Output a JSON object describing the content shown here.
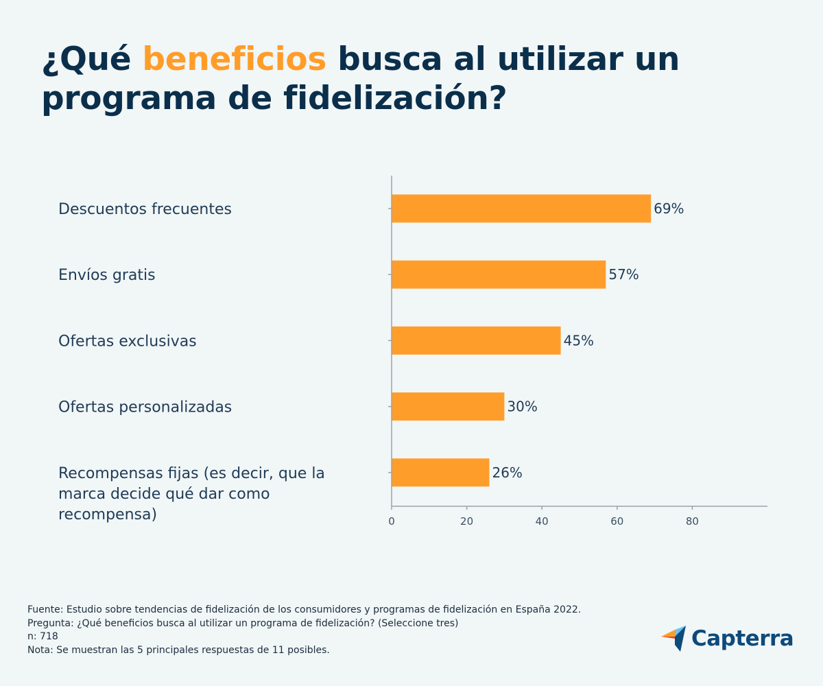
{
  "title": {
    "prefix": "¿Qué ",
    "highlight": "beneficios",
    "suffix": " busca al utilizar un programa de fidelización?"
  },
  "colors": {
    "bar": "#ff9d2b",
    "title": "#0b2f4b",
    "accent": "#ff9d28",
    "background": "#f1f6f7"
  },
  "chart_data": {
    "type": "bar",
    "orientation": "horizontal",
    "categories": [
      [
        "Descuentos frecuentes"
      ],
      [
        "Envíos gratis"
      ],
      [
        "Ofertas exclusivas"
      ],
      [
        "Ofertas personalizadas"
      ],
      [
        "Recompensas fijas (es decir, que la",
        "marca decide qué dar como",
        "recompensa)"
      ]
    ],
    "values": [
      69,
      57,
      45,
      30,
      26
    ],
    "value_labels": [
      "69%",
      "57%",
      "45%",
      "30%",
      "26%"
    ],
    "xticks": [
      0,
      20,
      40,
      60,
      80
    ],
    "xlim": [
      0,
      100
    ],
    "title": "¿Qué beneficios busca al utilizar un programa de fidelización?",
    "xlabel": "",
    "ylabel": ""
  },
  "footer": {
    "source": "Fuente: Estudio sobre tendencias de fidelización de los consumidores y programas de fidelización en España 2022.",
    "question": "Pregunta: ¿Qué beneficios busca al utilizar un programa de fidelización? (Seleccione tres)",
    "n": "n: 718",
    "note": "Nota: Se muestran las 5 principales respuestas de 11 posibles."
  },
  "logo": {
    "text": "Capterra",
    "icon": "capterra-arrow-icon"
  }
}
